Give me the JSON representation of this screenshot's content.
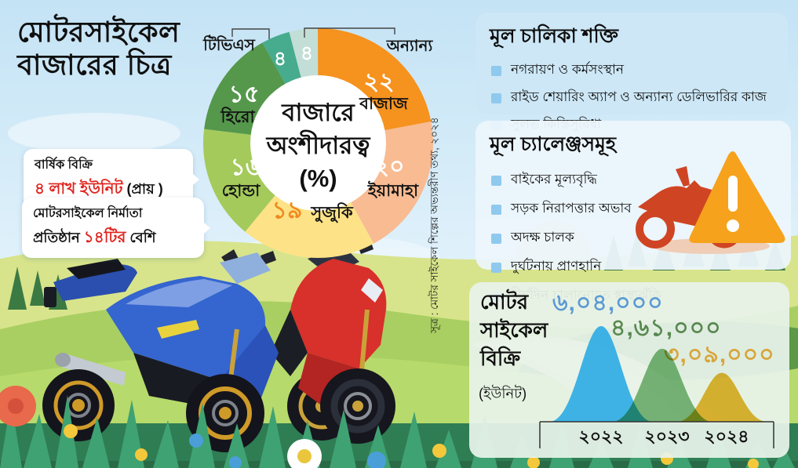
{
  "title": {
    "line1": "মোটরসাইকেল",
    "line2": "বাজারের চিত্র"
  },
  "source_note": "সূত্র : মোটর সাইকেল শিল্পের অভ্যন্তরীণ তথ্য, ২০২৪",
  "callouts": {
    "box1": {
      "line1": "বার্ষিক বিক্রি",
      "value": "৪ লাখ ইউনিট",
      "suffix": " (প্রায় )"
    },
    "box2": {
      "line1": "মোটরসাইকেল নির্মাতা",
      "prefix": "প্রতিষ্ঠান ",
      "value": "১৪টির",
      "suffix": " বেশি"
    }
  },
  "drivers": {
    "title": "মূল চালিকা শক্তি",
    "items": [
      "নগরায়ণ ও কর্মসংস্থান",
      "রাইড শেয়ারিং অ্যাপ ও অন্যান্য ডেলিভারির কাজ",
      "সুলভ কিস্তিসুবিধা"
    ]
  },
  "challenges": {
    "title": "মূল চ্যালেঞ্জসমূহ",
    "items": [
      "বাইকের মূল্যবৃদ্ধি",
      "সড়ক নিরাপত্তার অভাব",
      "অদক্ষ চালক",
      "দুর্ঘটনায় প্রাণহানি",
      "দীর্ঘদিন চালানোতে স্বাস্থ্যঝুঁকি"
    ]
  },
  "chart_data": [
    {
      "type": "pie",
      "title": "বাজারে অংশীদারত্ব (%)",
      "center_lines": [
        "বাজারে",
        "অংশীদারত্ব",
        "(%)"
      ],
      "labels": [
        "বাজাজ",
        "ইয়ামাহা",
        "সুজুকি",
        "হোন্ডা",
        "হিরো",
        "টিভিএস",
        "অন্যান্য"
      ],
      "values": [
        22,
        20,
        19,
        16,
        15,
        4,
        4
      ],
      "values_bn": [
        "২২",
        "২০",
        "১৯",
        "১৬",
        "১৫",
        "৪",
        "৪"
      ],
      "colors": [
        "#f6921e",
        "#f8bb92",
        "#fde287",
        "#a4ca5b",
        "#55984c",
        "#47ab8e",
        "#c3ded6"
      ],
      "legend_position": "on-slices"
    },
    {
      "type": "area",
      "title": "মোটর সাইকেল বিক্রি",
      "title_lines": [
        "মোটর",
        "সাইকেল",
        "বিক্রি"
      ],
      "unit_label": "(ইউনিট)",
      "categories": [
        "২০২২",
        "২০২৩",
        "২০২৪"
      ],
      "values": [
        604000,
        461000,
        309000
      ],
      "values_bn": [
        "৬,০৪,০০০",
        "৪,৬১,০০০",
        "৩,০৯,০০০"
      ],
      "colors": [
        "#35aee4",
        "#69ae68",
        "#e9b11f"
      ],
      "label_colors": [
        "#5b9bd5",
        "#58884f",
        "#d9a43b"
      ],
      "ylim": [
        0,
        604000
      ],
      "grid": false
    }
  ]
}
